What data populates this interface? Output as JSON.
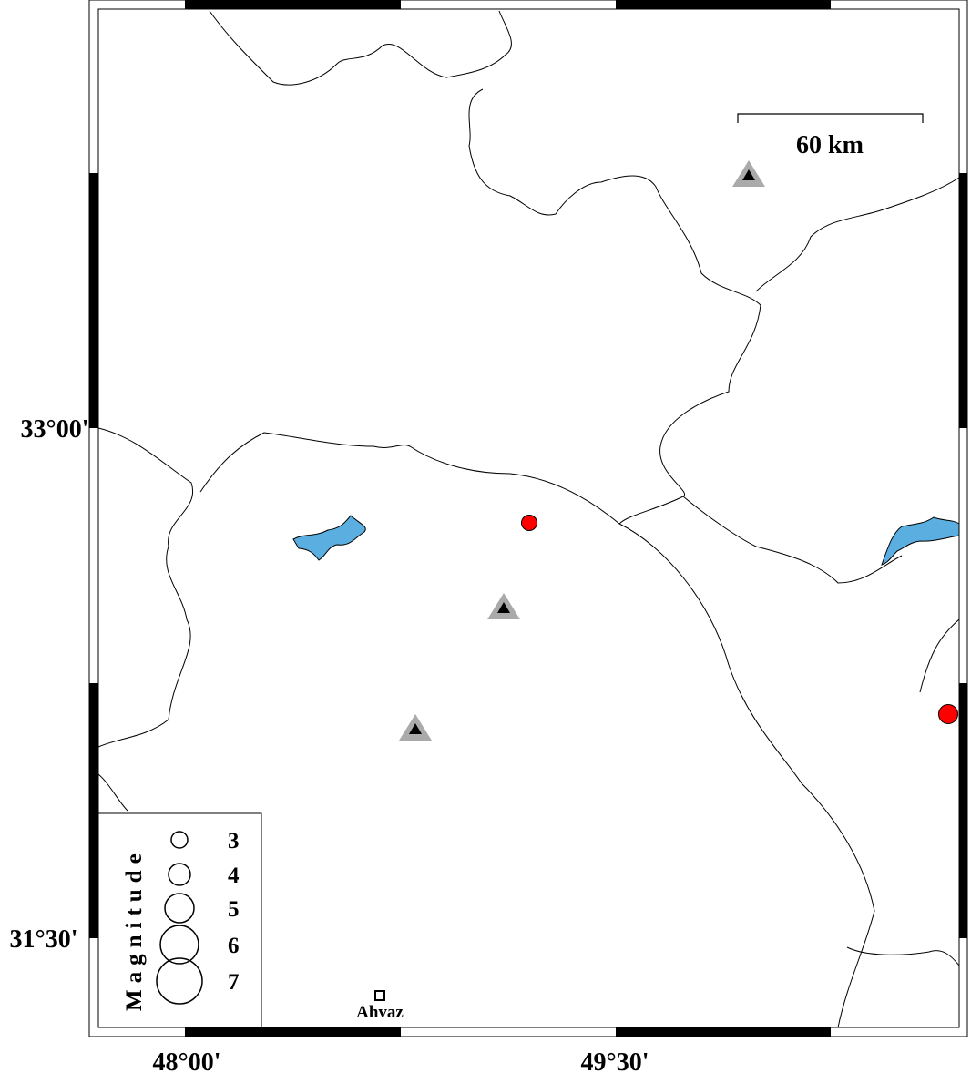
{
  "axes": {
    "left_ticks": [
      "33°00'",
      "31°30'"
    ],
    "bottom_ticks": [
      "48°00'",
      "49°30'"
    ]
  },
  "scale_bar": {
    "label": "60 km"
  },
  "legend": {
    "title": "Magnitude",
    "items": [
      "3",
      "4",
      "5",
      "6",
      "7"
    ]
  },
  "cities": [
    {
      "label": "Ahvaz"
    }
  ]
}
